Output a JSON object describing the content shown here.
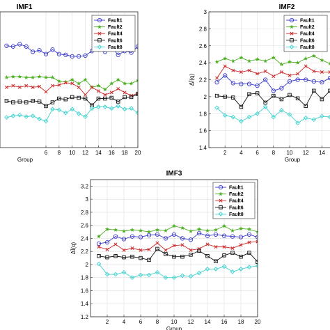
{
  "chart_data": [
    {
      "type": "line",
      "title": "IMF1",
      "xlabel": "Group",
      "ylabel": "",
      "xlim": [
        -1,
        20
      ],
      "ylim": [
        1.4,
        3.2
      ],
      "x_ticks": [
        6,
        8,
        10,
        12,
        14,
        16,
        18,
        20
      ],
      "y_ticks": [],
      "grid": true,
      "legend": "top-right",
      "series": [
        {
          "name": "Fault1",
          "color": "#3a3acb",
          "marker": "circle",
          "x": [
            0,
            1,
            2,
            3,
            4,
            5,
            6,
            7,
            8,
            9,
            10,
            11,
            12,
            13,
            14,
            15,
            16,
            17,
            18,
            19,
            20
          ],
          "values": [
            2.75,
            2.74,
            2.77,
            2.74,
            2.67,
            2.69,
            2.64,
            2.7,
            2.64,
            2.63,
            2.61,
            2.61,
            2.62,
            2.68,
            2.7,
            2.67,
            2.73,
            2.63,
            2.68,
            2.66,
            2.74
          ]
        },
        {
          "name": "Fault2",
          "color": "#4caf22",
          "marker": "star",
          "x": [
            0,
            1,
            2,
            3,
            4,
            5,
            6,
            7,
            8,
            9,
            10,
            11,
            12,
            13,
            14,
            15,
            16,
            17,
            18,
            19,
            20
          ],
          "values": [
            2.33,
            2.34,
            2.34,
            2.33,
            2.33,
            2.34,
            2.33,
            2.33,
            2.28,
            2.27,
            2.3,
            2.25,
            2.3,
            2.2,
            2.22,
            2.17,
            2.25,
            2.3,
            2.25,
            2.25,
            2.29
          ]
        },
        {
          "name": "Fault4",
          "color": "#cc2a2a",
          "marker": "x",
          "x": [
            0,
            1,
            2,
            3,
            4,
            5,
            6,
            7,
            8,
            9,
            10,
            11,
            12,
            13,
            14,
            15,
            16,
            17,
            18,
            19,
            20
          ],
          "values": [
            2.2,
            2.22,
            2.2,
            2.22,
            2.2,
            2.21,
            2.14,
            2.22,
            2.23,
            2.26,
            2.25,
            2.2,
            2.1,
            2.2,
            2.15,
            2.1,
            2.13,
            2.18,
            2.13,
            2.09,
            2.12
          ]
        },
        {
          "name": "Fault6",
          "color": "#111111",
          "marker": "square",
          "x": [
            0,
            1,
            2,
            3,
            4,
            5,
            6,
            7,
            8,
            9,
            10,
            11,
            12,
            13,
            14,
            15,
            16,
            17,
            18,
            19,
            20
          ],
          "values": [
            2.02,
            2.0,
            2.01,
            2.0,
            2.02,
            2.01,
            1.95,
            2.0,
            2.05,
            2.04,
            2.07,
            2.06,
            2.05,
            1.96,
            2.05,
            2.05,
            2.06,
            2.01,
            2.07,
            2.07,
            2.11
          ]
        },
        {
          "name": "Fault8",
          "color": "#3fd3cf",
          "marker": "diamond",
          "x": [
            0,
            1,
            2,
            3,
            4,
            5,
            6,
            7,
            8,
            9,
            10,
            11,
            12,
            13,
            14,
            15,
            16,
            17,
            18,
            19,
            20
          ],
          "values": [
            1.8,
            1.82,
            1.83,
            1.81,
            1.82,
            1.78,
            1.75,
            1.91,
            1.9,
            1.86,
            1.91,
            1.85,
            1.81,
            1.92,
            1.94,
            1.94,
            1.92,
            1.95,
            1.91,
            1.92,
            1.86
          ]
        }
      ]
    },
    {
      "type": "line",
      "title": "IMF2",
      "xlabel": "Group",
      "ylabel": "ΔĪ(q)",
      "xlim": [
        0,
        15
      ],
      "ylim": [
        1.4,
        3.0
      ],
      "x_ticks": [
        2,
        4,
        6,
        8,
        10,
        12,
        14
      ],
      "y_ticks": [
        1.4,
        1.6,
        1.8,
        2.0,
        2.2,
        2.4,
        2.6,
        2.8,
        3.0
      ],
      "grid": true,
      "legend": "top-right",
      "series": [
        {
          "name": "Fault1",
          "color": "#3a3acb",
          "marker": "circle",
          "x": [
            1,
            2,
            3,
            4,
            5,
            6,
            7,
            8,
            9,
            10,
            11,
            12,
            13,
            14,
            15
          ],
          "values": [
            2.17,
            2.25,
            2.16,
            2.15,
            2.15,
            2.13,
            2.2,
            2.07,
            2.1,
            2.18,
            2.2,
            2.2,
            2.18,
            2.17,
            2.22
          ]
        },
        {
          "name": "Fault2",
          "color": "#4caf22",
          "marker": "star",
          "x": [
            1,
            2,
            3,
            4,
            5,
            6,
            7,
            8,
            9,
            10,
            11,
            12,
            13,
            14,
            15
          ],
          "values": [
            2.41,
            2.45,
            2.42,
            2.46,
            2.42,
            2.44,
            2.42,
            2.46,
            2.38,
            2.41,
            2.4,
            2.45,
            2.48,
            2.43,
            2.39
          ]
        },
        {
          "name": "Fault4",
          "color": "#cc2a2a",
          "marker": "x",
          "x": [
            1,
            2,
            3,
            4,
            5,
            6,
            7,
            8,
            9,
            10,
            11,
            12,
            13,
            14,
            15
          ],
          "values": [
            2.22,
            2.36,
            2.31,
            2.29,
            2.31,
            2.27,
            2.3,
            2.24,
            2.29,
            2.25,
            2.27,
            2.36,
            2.3,
            2.29,
            2.29
          ]
        },
        {
          "name": "Fault6",
          "color": "#111111",
          "marker": "square",
          "x": [
            1,
            2,
            3,
            4,
            5,
            6,
            7,
            8,
            9,
            10,
            11,
            12,
            13,
            14,
            15
          ],
          "values": [
            2.01,
            2.0,
            1.99,
            1.88,
            2.03,
            2.04,
            1.93,
            2.01,
            1.97,
            2.02,
            1.98,
            1.89,
            2.07,
            1.97,
            2.07
          ]
        },
        {
          "name": "Fault8",
          "color": "#3fd3cf",
          "marker": "diamond",
          "x": [
            1,
            2,
            3,
            4,
            5,
            6,
            7,
            8,
            9,
            10,
            11,
            12,
            13,
            14,
            15
          ],
          "values": [
            1.87,
            1.78,
            1.76,
            1.71,
            1.76,
            1.8,
            1.88,
            1.76,
            1.84,
            1.79,
            1.69,
            1.75,
            1.73,
            1.77,
            1.76
          ]
        }
      ]
    },
    {
      "type": "line",
      "title": "IMF3",
      "xlabel": "Group",
      "ylabel": "ΔĪ(q)",
      "xlim": [
        0,
        20
      ],
      "ylim": [
        1.2,
        3.3
      ],
      "x_ticks": [
        2,
        4,
        6,
        8,
        10,
        12,
        14,
        16,
        18,
        20
      ],
      "y_ticks": [
        1.2,
        1.4,
        1.6,
        1.8,
        2.0,
        2.2,
        2.4,
        2.6,
        2.8,
        3.0,
        3.2
      ],
      "grid": true,
      "legend": "top-right",
      "series": [
        {
          "name": "Fault1",
          "color": "#3a3acb",
          "marker": "circle",
          "x": [
            1,
            2,
            3,
            4,
            5,
            6,
            7,
            8,
            9,
            10,
            11,
            12,
            13,
            14,
            15,
            16,
            17,
            18,
            19,
            20
          ],
          "values": [
            2.32,
            2.34,
            2.43,
            2.39,
            2.43,
            2.42,
            2.45,
            2.46,
            2.4,
            2.46,
            2.4,
            2.38,
            2.48,
            2.44,
            2.46,
            2.44,
            2.43,
            2.42,
            2.46,
            2.42
          ]
        },
        {
          "name": "Fault2",
          "color": "#4caf22",
          "marker": "star",
          "x": [
            1,
            2,
            3,
            4,
            5,
            6,
            7,
            8,
            9,
            10,
            11,
            12,
            13,
            14,
            15,
            16,
            17,
            18,
            19,
            20
          ],
          "values": [
            2.43,
            2.54,
            2.53,
            2.51,
            2.53,
            2.52,
            2.5,
            2.53,
            2.52,
            2.59,
            2.56,
            2.51,
            2.54,
            2.52,
            2.53,
            2.59,
            2.52,
            2.55,
            2.54,
            2.5
          ]
        },
        {
          "name": "Fault4",
          "color": "#cc2a2a",
          "marker": "x",
          "x": [
            1,
            2,
            3,
            4,
            5,
            6,
            7,
            8,
            9,
            10,
            11,
            12,
            13,
            14,
            15,
            16,
            17,
            18,
            19,
            20
          ],
          "values": [
            2.27,
            2.23,
            2.31,
            2.22,
            2.25,
            2.22,
            2.23,
            2.33,
            2.22,
            2.29,
            2.3,
            2.22,
            2.24,
            2.31,
            2.27,
            2.27,
            2.25,
            2.3,
            2.34,
            2.35
          ]
        },
        {
          "name": "Fault6",
          "color": "#111111",
          "marker": "square",
          "x": [
            1,
            2,
            3,
            4,
            5,
            6,
            7,
            8,
            9,
            10,
            11,
            12,
            13,
            14,
            15,
            16,
            17,
            18,
            19,
            20
          ],
          "values": [
            2.13,
            2.11,
            2.13,
            2.11,
            2.12,
            2.1,
            2.07,
            2.24,
            2.16,
            2.12,
            2.12,
            2.15,
            2.21,
            2.13,
            2.05,
            2.14,
            2.18,
            2.12,
            2.18,
            2.04
          ]
        },
        {
          "name": "Fault8",
          "color": "#3fd3cf",
          "marker": "diamond",
          "x": [
            1,
            2,
            3,
            4,
            5,
            6,
            7,
            8,
            9,
            10,
            11,
            12,
            13,
            14,
            15,
            16,
            17,
            18,
            19,
            20
          ],
          "values": [
            2.01,
            1.85,
            1.85,
            1.88,
            1.8,
            1.84,
            1.84,
            1.88,
            1.8,
            1.8,
            1.83,
            1.82,
            1.87,
            1.93,
            1.93,
            1.97,
            1.89,
            1.93,
            1.96,
            1.98
          ]
        }
      ]
    }
  ]
}
